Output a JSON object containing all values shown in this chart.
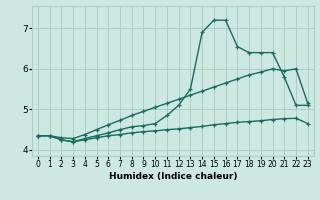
{
  "xlabel": "Humidex (Indice chaleur)",
  "bg_color": "#cce8e0",
  "grid_color": "#aacfc8",
  "line_color": "#1a6b60",
  "xlim": [
    -0.5,
    23.5
  ],
  "ylim": [
    3.85,
    7.55
  ],
  "xticks": [
    0,
    1,
    2,
    3,
    4,
    5,
    6,
    7,
    8,
    9,
    10,
    11,
    12,
    13,
    14,
    15,
    16,
    17,
    18,
    19,
    20,
    21,
    22,
    23
  ],
  "yticks": [
    4,
    5,
    6,
    7
  ],
  "line1_x": [
    0,
    1,
    2,
    3,
    4,
    5,
    6,
    7,
    8,
    9,
    10,
    11,
    12,
    13,
    14,
    15,
    16,
    17,
    18,
    19,
    20,
    21,
    22,
    23
  ],
  "line1_y": [
    4.35,
    4.35,
    4.25,
    4.2,
    4.25,
    4.3,
    4.35,
    4.38,
    4.42,
    4.45,
    4.47,
    4.5,
    4.52,
    4.55,
    4.58,
    4.62,
    4.65,
    4.68,
    4.7,
    4.72,
    4.75,
    4.77,
    4.78,
    4.65
  ],
  "line2_x": [
    0,
    1,
    2,
    3,
    4,
    5,
    6,
    7,
    8,
    9,
    10,
    11,
    12,
    13,
    14,
    15,
    16,
    17,
    18,
    19,
    20,
    21,
    22,
    23
  ],
  "line2_y": [
    4.35,
    4.35,
    4.3,
    4.28,
    4.38,
    4.5,
    4.62,
    4.73,
    4.85,
    4.95,
    5.05,
    5.15,
    5.25,
    5.35,
    5.45,
    5.55,
    5.65,
    5.75,
    5.85,
    5.92,
    6.0,
    5.95,
    6.0,
    5.15
  ],
  "line3_x": [
    0,
    1,
    2,
    3,
    4,
    5,
    6,
    7,
    8,
    9,
    10,
    11,
    12,
    13,
    14,
    15,
    16,
    17,
    18,
    19,
    20,
    21,
    22,
    23
  ],
  "line3_y": [
    4.35,
    4.35,
    4.25,
    4.2,
    4.28,
    4.35,
    4.42,
    4.5,
    4.57,
    4.6,
    4.65,
    4.85,
    5.1,
    5.5,
    6.9,
    7.2,
    7.2,
    6.55,
    6.4,
    6.4,
    6.4,
    5.8,
    5.1,
    5.1
  ]
}
